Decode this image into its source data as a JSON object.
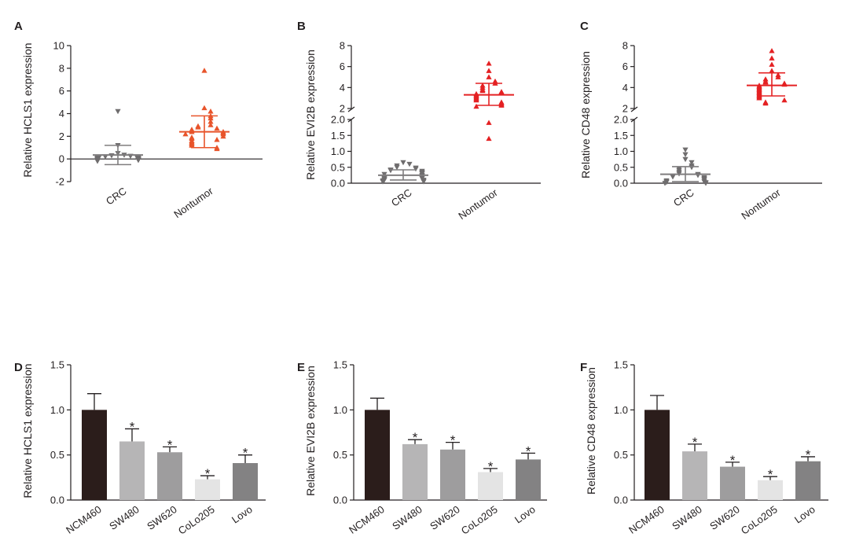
{
  "colors": {
    "crc_marker": "#6f6d6e",
    "crc_line": "#7f7d7e",
    "nontumor_a": "#e8542b",
    "nontumor_bc": "#e42123",
    "axis": "#231f20",
    "bars": [
      "#2b1d1b",
      "#b6b5b6",
      "#9e9d9e",
      "#e4e4e4",
      "#838283"
    ]
  },
  "chart_data": [
    {
      "type": "scatter",
      "panel": "A",
      "ylabel": "Relative HCLS1 expression",
      "ylim": [
        -2,
        10
      ],
      "yticks": [
        "-2",
        "0",
        "2",
        "4",
        "6",
        "8",
        "10"
      ],
      "categories": [
        "CRC",
        "Nontumor"
      ],
      "series": [
        {
          "name": "CRC",
          "marker": "triangle-down",
          "mean": 0.35,
          "sd_low": -0.5,
          "sd_high": 1.2,
          "values": [
            4.2,
            1.2,
            0.5,
            0.35,
            0.3,
            0.25,
            0.2,
            0.2,
            0.15,
            0.15,
            0.1,
            0.1,
            0.1,
            0.05,
            0.05,
            0.05,
            0.0,
            0.0,
            0.0,
            0.0,
            0.0,
            -0.05,
            -0.05,
            -0.1,
            -0.1,
            -0.1,
            -0.2
          ]
        },
        {
          "name": "Nontumor",
          "marker": "triangle-up",
          "mean": 2.4,
          "sd_low": 1.0,
          "sd_high": 3.8,
          "values": [
            7.8,
            4.5,
            4.2,
            3.8,
            3.6,
            3.3,
            3.0,
            2.9,
            2.8,
            2.7,
            2.6,
            2.5,
            2.4,
            2.4,
            2.3,
            2.2,
            2.2,
            2.0,
            1.9,
            1.8,
            1.7,
            1.6,
            1.5,
            1.4,
            1.3,
            1.2,
            1.0,
            0.9
          ]
        }
      ]
    },
    {
      "type": "scatter",
      "panel": "B",
      "ylabel": "Relative EVI2B expression",
      "broken_axis": true,
      "ylim_low": [
        0,
        2.0
      ],
      "ylim_high": [
        2,
        8
      ],
      "yticks_low": [
        "0.0",
        "0.5",
        "1.0",
        "1.5",
        "2.0"
      ],
      "yticks_high": [
        "2",
        "4",
        "6",
        "8"
      ],
      "categories": [
        "CRC",
        "Nontumor"
      ],
      "series": [
        {
          "name": "CRC",
          "marker": "triangle-down",
          "mean": 0.25,
          "sd_low": 0.1,
          "sd_high": 0.42,
          "values": [
            0.65,
            0.6,
            0.55,
            0.5,
            0.48,
            0.45,
            0.42,
            0.4,
            0.38,
            0.35,
            0.32,
            0.3,
            0.28,
            0.25,
            0.22,
            0.2,
            0.18,
            0.15,
            0.15,
            0.12,
            0.1,
            0.1,
            0.08,
            0.08,
            0.05,
            0.05
          ]
        },
        {
          "name": "Nontumor",
          "marker": "triangle-up",
          "mean": 3.3,
          "sd_low": 2.3,
          "sd_high": 4.4,
          "values": [
            6.3,
            5.6,
            5.0,
            4.6,
            4.4,
            4.2,
            4.0,
            3.8,
            3.7,
            3.6,
            3.5,
            3.4,
            3.3,
            3.2,
            3.1,
            3.0,
            2.9,
            2.8,
            2.6,
            2.5,
            2.4,
            2.3,
            2.2,
            1.9,
            1.4
          ]
        }
      ]
    },
    {
      "type": "scatter",
      "panel": "C",
      "ylabel": "Relative CD48 expression",
      "broken_axis": true,
      "ylim_low": [
        0,
        2.0
      ],
      "ylim_high": [
        2,
        8
      ],
      "yticks_low": [
        "0.0",
        "0.5",
        "1.0",
        "1.5",
        "2.0"
      ],
      "yticks_high": [
        "2",
        "4",
        "6",
        "8"
      ],
      "categories": [
        "CRC",
        "Nontumor"
      ],
      "series": [
        {
          "name": "CRC",
          "marker": "triangle-down",
          "mean": 0.28,
          "sd_low": 0.05,
          "sd_high": 0.52,
          "values": [
            1.05,
            0.9,
            0.75,
            0.65,
            0.55,
            0.5,
            0.45,
            0.4,
            0.35,
            0.3,
            0.28,
            0.25,
            0.22,
            0.2,
            0.18,
            0.15,
            0.12,
            0.1,
            0.08,
            0.05,
            0.05,
            0.03,
            0.02,
            0.0,
            0.0
          ]
        },
        {
          "name": "Nontumor",
          "marker": "triangle-up",
          "mean": 4.2,
          "sd_low": 3.2,
          "sd_high": 5.4,
          "values": [
            7.5,
            6.8,
            6.2,
            5.6,
            5.2,
            5.0,
            4.8,
            4.6,
            4.5,
            4.4,
            4.3,
            4.2,
            4.1,
            4.0,
            3.9,
            3.8,
            3.7,
            3.6,
            3.5,
            3.4,
            3.3,
            3.2,
            3.1,
            3.0,
            2.8,
            2.6,
            2.5
          ]
        }
      ]
    },
    {
      "type": "bar",
      "panel": "D",
      "ylabel": "Relative HCLS1 expression",
      "ylim": [
        0,
        1.5
      ],
      "yticks": [
        "0.0",
        "0.5",
        "1.0",
        "1.5"
      ],
      "categories": [
        "NCM460",
        "SW480",
        "SW620",
        "CoLo205",
        "Lovo"
      ],
      "values": [
        1.0,
        0.65,
        0.53,
        0.23,
        0.41
      ],
      "errors": [
        0.18,
        0.14,
        0.06,
        0.04,
        0.09
      ],
      "significance": [
        "",
        "*",
        "*",
        "*",
        "*"
      ]
    },
    {
      "type": "bar",
      "panel": "E",
      "ylabel": "Relative EVI2B expression",
      "ylim": [
        0,
        1.5
      ],
      "yticks": [
        "0.0",
        "0.5",
        "1.0",
        "1.5"
      ],
      "categories": [
        "NCM460",
        "SW480",
        "SW620",
        "CoLo205",
        "Lovo"
      ],
      "values": [
        1.0,
        0.62,
        0.56,
        0.31,
        0.45
      ],
      "errors": [
        0.13,
        0.05,
        0.08,
        0.04,
        0.07
      ],
      "significance": [
        "",
        "*",
        "*",
        "*",
        "*"
      ]
    },
    {
      "type": "bar",
      "panel": "F",
      "ylabel": "Relative CD48 expression",
      "ylim": [
        0,
        1.5
      ],
      "yticks": [
        "0.0",
        "0.5",
        "1.0",
        "1.5"
      ],
      "categories": [
        "NCM460",
        "SW480",
        "SW620",
        "CoLo205",
        "Lovo"
      ],
      "values": [
        1.0,
        0.54,
        0.37,
        0.22,
        0.43
      ],
      "errors": [
        0.16,
        0.08,
        0.05,
        0.04,
        0.05
      ],
      "significance": [
        "",
        "*",
        "*",
        "*",
        "*"
      ]
    }
  ]
}
